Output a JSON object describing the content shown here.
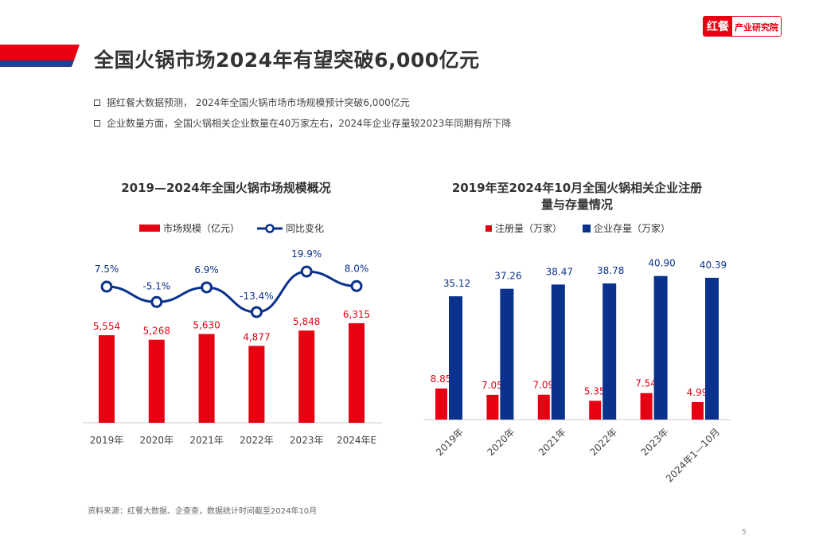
{
  "header": {
    "title": "全国火锅市场2024年有望突破6,000亿元",
    "logo": {
      "part1": "红餐",
      "part2": "产业研究院"
    },
    "bullets": [
      "据红餐大数据预测， 2024年全国火锅市场市场规模预计突破6,000亿元",
      "企业数量方面，全国火锅相关企业数量在40万家左右，2024年企业存量较2023年同期有所下降"
    ]
  },
  "colors": {
    "red": "#e60012",
    "blue": "#0a318c",
    "accent_bar_red": "#e60012",
    "accent_bar_blue": "#1f3c96"
  },
  "chart_data": [
    {
      "type": "bar+line",
      "title": "2019—2024年全国火锅市场规模概况",
      "categories": [
        "2019年",
        "2020年",
        "2021年",
        "2022年",
        "2023年",
        "2024年E"
      ],
      "series": [
        {
          "name": "市场规模（亿元）",
          "type": "bar",
          "values": [
            5554,
            5268,
            5630,
            4877,
            5848,
            6315
          ],
          "labels": [
            "5,554",
            "5,268",
            "5,630",
            "4,877",
            "5,848",
            "6,315"
          ]
        },
        {
          "name": "同比变化",
          "type": "line",
          "values": [
            7.5,
            -5.1,
            6.9,
            -13.4,
            19.9,
            8.0
          ],
          "labels": [
            "7.5%",
            "-5.1%",
            "6.9%",
            "-13.4%",
            "19.9%",
            "8.0%"
          ]
        }
      ],
      "legend": "top",
      "grid": false
    },
    {
      "type": "bar",
      "title": "2019年至2024年10月全国火锅相关企业注册量与存量情况",
      "title_lines": [
        "2019年至2024年10月全国火锅相关企业注册",
        "量与存量情况"
      ],
      "categories": [
        "2019年",
        "2020年",
        "2021年",
        "2022年",
        "2023年",
        "2024年1—10月"
      ],
      "series": [
        {
          "name": "注册量（万家）",
          "values": [
            8.85,
            7.05,
            7.09,
            5.35,
            7.54,
            4.99
          ],
          "labels": [
            "8.85",
            "7.05",
            "7.09",
            "5.35",
            "7.54",
            "4.99"
          ]
        },
        {
          "name": "企业存量（万家）",
          "values": [
            35.12,
            37.26,
            38.47,
            38.78,
            40.9,
            40.39
          ],
          "labels": [
            "35.12",
            "37.26",
            "38.47",
            "38.78",
            "40.90",
            "40.39"
          ]
        }
      ],
      "legend": "top",
      "grid": false
    }
  ],
  "footer": {
    "source": "资料来源：红餐大数据、企查查，数据统计时间截至2024年10月",
    "page": "5"
  }
}
